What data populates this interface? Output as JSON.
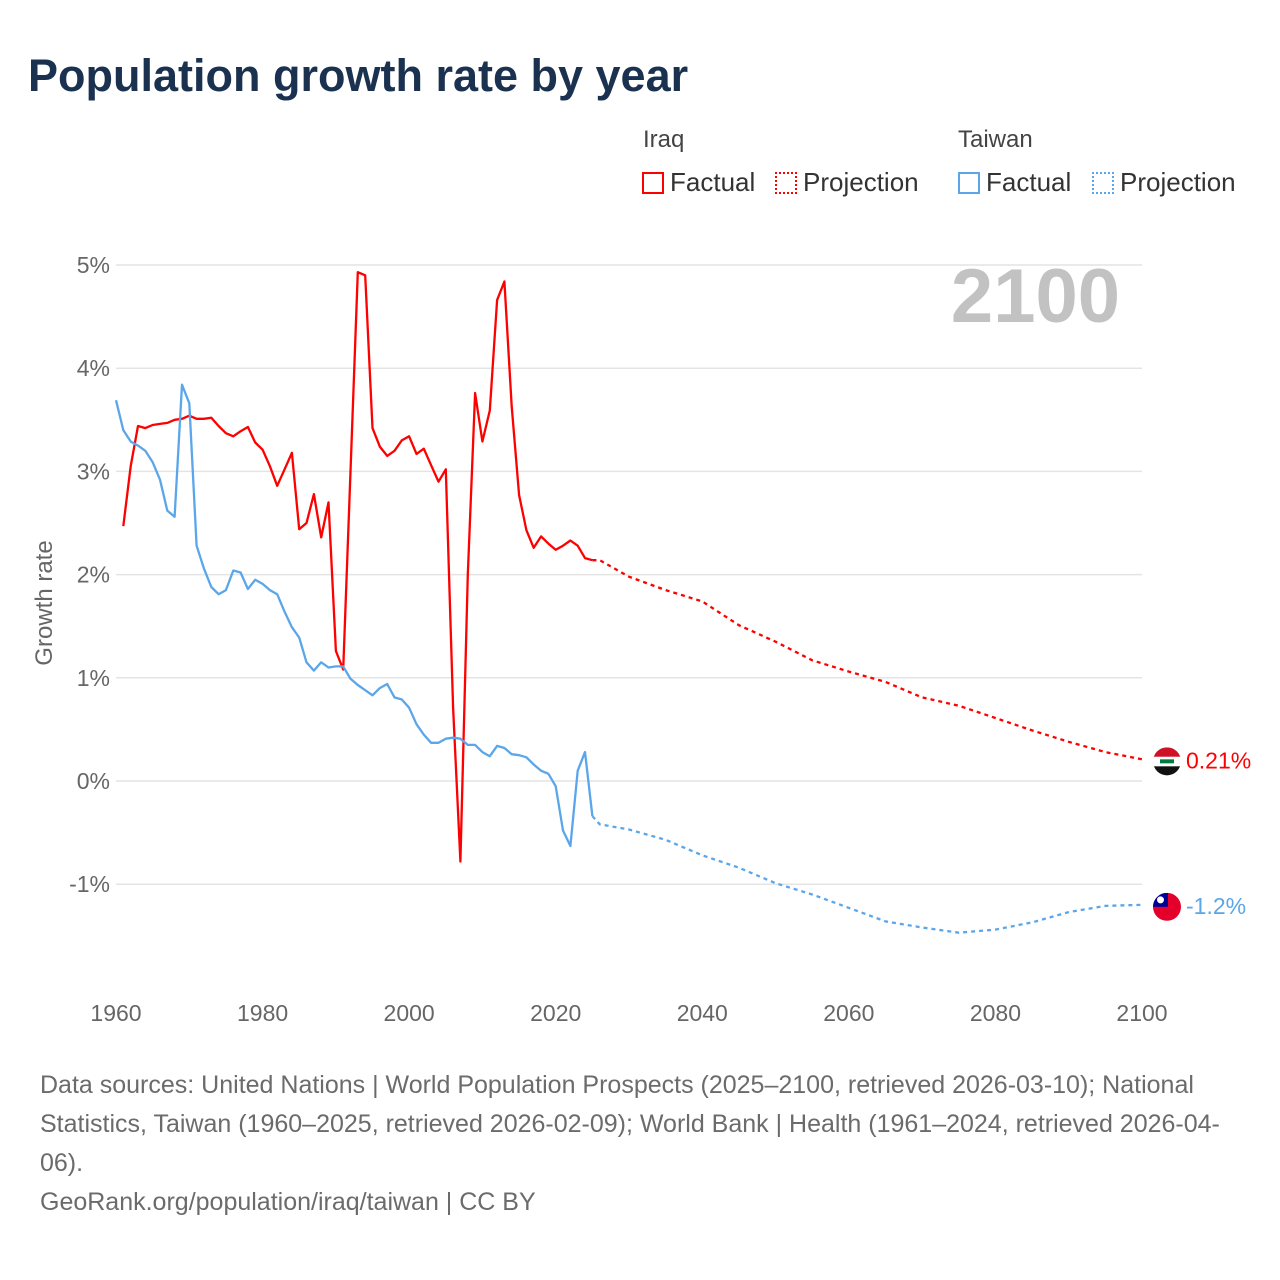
{
  "title": "Population growth rate by year",
  "legend": {
    "groups": [
      {
        "name": "Iraq",
        "factual": "Factual",
        "projection": "Projection",
        "color": "#ff0000"
      },
      {
        "name": "Taiwan",
        "factual": "Factual",
        "projection": "Projection",
        "color": "#5ba6ea"
      }
    ]
  },
  "year_watermark": "2100",
  "footer": {
    "sources": "Data sources: United Nations | World Population Prospects (2025–2100, retrieved 2026-03-10); National Statistics, Taiwan (1960–2025, retrieved 2026-02-09); World Bank | Health (1961–2024, retrieved 2026-04-06).",
    "credit": "GeoRank.org/population/iraq/taiwan | CC BY"
  },
  "chart_data": {
    "type": "line",
    "title": "Population growth rate by year",
    "xlabel": "",
    "ylabel": "Growth rate",
    "xlim": [
      1960,
      2100
    ],
    "ylim": [
      -1.5,
      5
    ],
    "x_ticks": [
      1960,
      1980,
      2000,
      2020,
      2040,
      2060,
      2080,
      2100
    ],
    "x_tick_labels": [
      "1960",
      "1980",
      "2000",
      "2020",
      "2040",
      "2060",
      "2080",
      "2100"
    ],
    "y_ticks": [
      5,
      4,
      3,
      2,
      1,
      0,
      -1
    ],
    "y_tick_labels": [
      "5%",
      "4%",
      "3%",
      "2%",
      "1%",
      "0%",
      "-1%"
    ],
    "grid": true,
    "legend_position": "top-right",
    "series": [
      {
        "name": "Iraq",
        "color": "#ff0000",
        "end_label": "0.21%",
        "factual": {
          "x": [
            1961,
            1962,
            1963,
            1964,
            1965,
            1966,
            1967,
            1968,
            1969,
            1970,
            1971,
            1972,
            1973,
            1974,
            1975,
            1976,
            1977,
            1978,
            1979,
            1980,
            1981,
            1982,
            1983,
            1984,
            1985,
            1986,
            1987,
            1988,
            1989,
            1990,
            1991,
            1992,
            1993,
            1994,
            1995,
            1996,
            1997,
            1998,
            1999,
            2000,
            2001,
            2002,
            2003,
            2004,
            2005,
            2006,
            2007,
            2008,
            2009,
            2010,
            2011,
            2012,
            2013,
            2014,
            2015,
            2016,
            2017,
            2018,
            2019,
            2020,
            2021,
            2022,
            2023,
            2024,
            2025
          ],
          "y": [
            2.47,
            3.05,
            3.44,
            3.42,
            3.45,
            3.46,
            3.47,
            3.5,
            3.51,
            3.54,
            3.51,
            3.51,
            3.52,
            3.44,
            3.37,
            3.34,
            3.39,
            3.43,
            3.28,
            3.21,
            3.05,
            2.86,
            3.02,
            3.18,
            2.44,
            2.5,
            2.78,
            2.36,
            2.7,
            1.26,
            1.08,
            3.0,
            4.93,
            4.9,
            3.42,
            3.24,
            3.15,
            3.2,
            3.3,
            3.34,
            3.17,
            3.22,
            3.06,
            2.9,
            3.02,
            0.71,
            -0.78,
            2.0,
            3.76,
            3.29,
            3.59,
            4.66,
            4.84,
            3.63,
            2.77,
            2.43,
            2.26,
            2.37,
            2.3,
            2.24,
            2.28,
            2.33,
            2.28,
            2.16,
            2.14
          ]
        },
        "projection": {
          "x": [
            2025,
            2026,
            2030,
            2035,
            2040,
            2045,
            2050,
            2055,
            2060,
            2065,
            2070,
            2075,
            2080,
            2085,
            2090,
            2095,
            2100
          ],
          "y": [
            2.14,
            2.14,
            1.98,
            1.85,
            1.74,
            1.51,
            1.35,
            1.17,
            1.06,
            0.96,
            0.81,
            0.73,
            0.61,
            0.49,
            0.38,
            0.28,
            0.21
          ]
        }
      },
      {
        "name": "Taiwan",
        "color": "#5ba6ea",
        "end_label": "-1.2%",
        "factual": {
          "x": [
            1960,
            1961,
            1962,
            1963,
            1964,
            1965,
            1966,
            1967,
            1968,
            1969,
            1970,
            1971,
            1972,
            1973,
            1974,
            1975,
            1976,
            1977,
            1978,
            1979,
            1980,
            1981,
            1982,
            1983,
            1984,
            1985,
            1986,
            1987,
            1988,
            1989,
            1990,
            1991,
            1992,
            1993,
            1994,
            1995,
            1996,
            1997,
            1998,
            1999,
            2000,
            2001,
            2002,
            2003,
            2004,
            2005,
            2006,
            2007,
            2008,
            2009,
            2010,
            2011,
            2012,
            2013,
            2014,
            2015,
            2016,
            2017,
            2018,
            2019,
            2020,
            2021,
            2022,
            2023,
            2024,
            2025
          ],
          "y": [
            3.69,
            3.4,
            3.29,
            3.25,
            3.2,
            3.09,
            2.92,
            2.62,
            2.56,
            3.84,
            3.66,
            2.28,
            2.06,
            1.88,
            1.81,
            1.85,
            2.04,
            2.02,
            1.86,
            1.95,
            1.91,
            1.85,
            1.81,
            1.64,
            1.49,
            1.39,
            1.15,
            1.07,
            1.15,
            1.1,
            1.11,
            1.11,
            0.99,
            0.93,
            0.88,
            0.83,
            0.9,
            0.94,
            0.81,
            0.79,
            0.71,
            0.55,
            0.45,
            0.37,
            0.37,
            0.41,
            0.42,
            0.41,
            0.35,
            0.35,
            0.28,
            0.24,
            0.34,
            0.32,
            0.26,
            0.25,
            0.23,
            0.16,
            0.1,
            0.07,
            -0.05,
            -0.48,
            -0.63,
            0.1,
            0.28,
            -0.34
          ]
        },
        "projection": {
          "x": [
            2025,
            2026,
            2030,
            2035,
            2040,
            2045,
            2050,
            2055,
            2060,
            2065,
            2070,
            2075,
            2080,
            2085,
            2090,
            2095,
            2100
          ],
          "y": [
            -0.34,
            -0.42,
            -0.47,
            -0.57,
            -0.72,
            -0.84,
            -0.99,
            -1.1,
            -1.23,
            -1.36,
            -1.42,
            -1.47,
            -1.44,
            -1.37,
            -1.27,
            -1.21,
            -1.2
          ]
        }
      }
    ]
  }
}
